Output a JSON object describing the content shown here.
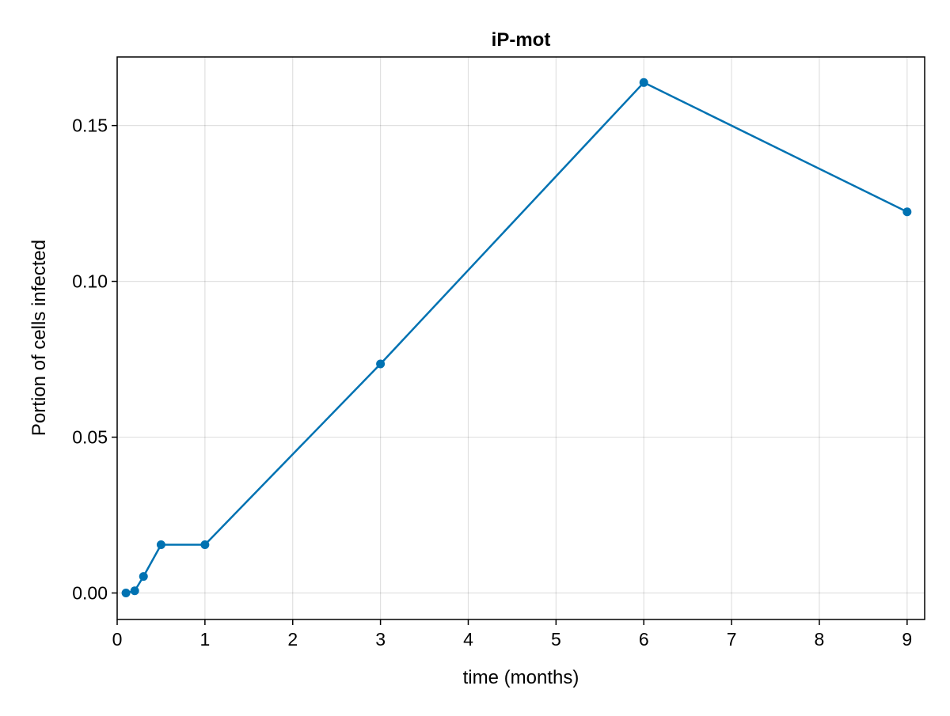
{
  "chart_data": {
    "type": "line",
    "title": "iP-mot",
    "xlabel": "time (months)",
    "ylabel": "Portion of cells infected",
    "xlim": [
      0,
      9.2
    ],
    "ylim": [
      -0.0085,
      0.172
    ],
    "xticks": [
      0,
      1,
      2,
      3,
      4,
      5,
      6,
      7,
      8,
      9
    ],
    "xtick_labels": [
      "0",
      "1",
      "2",
      "3",
      "4",
      "5",
      "6",
      "7",
      "8",
      "9"
    ],
    "yticks": [
      0.0,
      0.05,
      0.1,
      0.15
    ],
    "ytick_labels": [
      "0.00",
      "0.05",
      "0.10",
      "0.15"
    ],
    "grid": true,
    "legend": "none",
    "series": [
      {
        "color": "#0072b2",
        "markers": true,
        "x": [
          0.1,
          0.2,
          0.3,
          0.5,
          1,
          3,
          6,
          9
        ],
        "y": [
          0.0,
          0.0007,
          0.0053,
          0.0155,
          0.0155,
          0.0735,
          0.1638,
          0.1223
        ]
      }
    ]
  }
}
